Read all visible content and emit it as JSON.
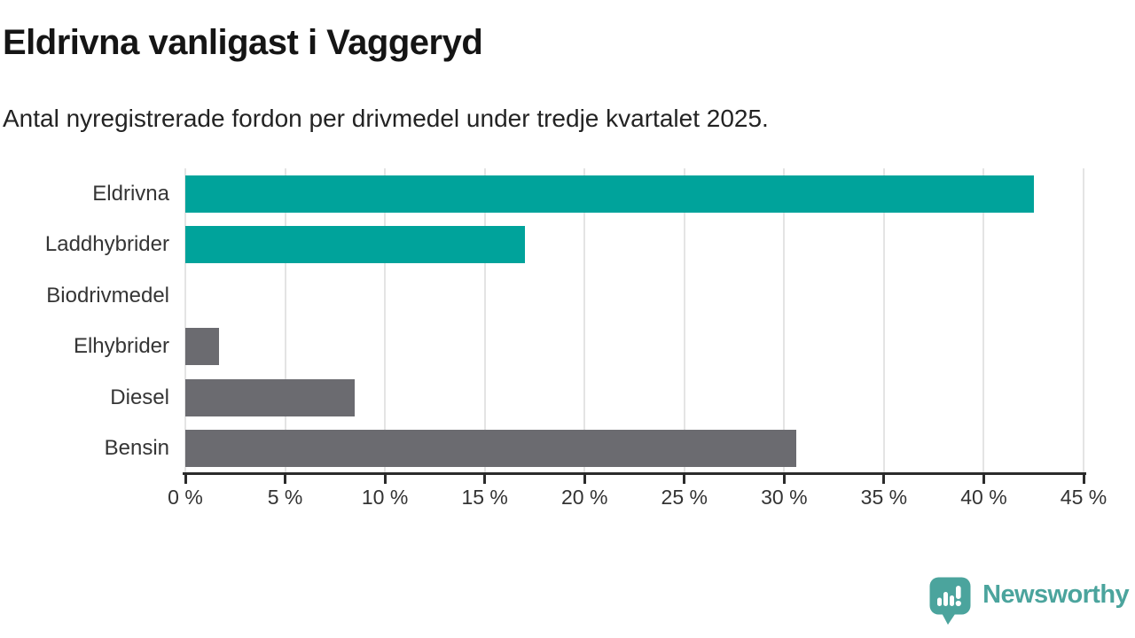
{
  "header": {
    "title": "Eldrivna vanligast i Vaggeryd",
    "subtitle": "Antal nyregistrerade fordon per drivmedel under tredje kvartalet 2025."
  },
  "colors": {
    "teal": "#00a39b",
    "gray": "#6b6b70",
    "grid": "#e4e4e4",
    "axis": "#2b2b2b",
    "logo_teal": "#4ba49d",
    "title_text": "#151515",
    "label_text": "#353535"
  },
  "chart_data": {
    "type": "bar",
    "orientation": "horizontal",
    "title": "Eldrivna vanligast i Vaggeryd",
    "subtitle": "Antal nyregistrerade fordon per drivmedel under tredje kvartalet 2025.",
    "categories": [
      "Eldrivna",
      "Laddhybrider",
      "Biodrivmedel",
      "Elhybrider",
      "Diesel",
      "Bensin"
    ],
    "values": [
      42.5,
      17.0,
      0,
      1.7,
      8.5,
      30.6
    ],
    "unit": "%",
    "bar_colors": [
      "#00a39b",
      "#00a39b",
      "#6b6b70",
      "#6b6b70",
      "#6b6b70",
      "#6b6b70"
    ],
    "xlim": [
      0,
      45
    ],
    "x_tick_step": 5,
    "x_tick_labels": [
      "0 %",
      "5 %",
      "10 %",
      "15 %",
      "20 %",
      "25 %",
      "30 %",
      "35 %",
      "40 %",
      "45 %"
    ],
    "grid": true,
    "legend": false,
    "xlabel": "",
    "ylabel": ""
  },
  "branding": {
    "logo_text": "Newsworthy",
    "logo_icon": "newsworthy-speech-bubble-bar-chart-icon"
  }
}
